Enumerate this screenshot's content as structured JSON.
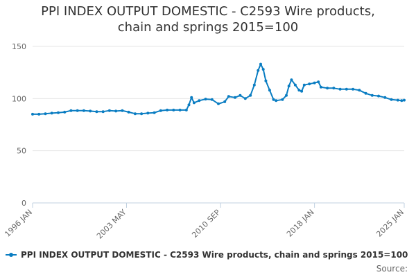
{
  "chart_data": {
    "type": "line",
    "title_line1": "PPI INDEX OUTPUT DOMESTIC - C2593 Wire products,",
    "title_line2": "chain and springs 2015=100",
    "xlabel": "",
    "ylabel": "",
    "ylim": [
      0,
      150
    ],
    "y_ticks": [
      0,
      50,
      100,
      150
    ],
    "y_tick_labels": [
      "0",
      "50",
      "100",
      "150"
    ],
    "x_range": [
      1996.0,
      2025.0
    ],
    "x_ticks": [
      {
        "value": 1996.0,
        "label": "1996 JAN"
      },
      {
        "value": 2003.33,
        "label": "2003 MAY"
      },
      {
        "value": 2010.67,
        "label": "2010 SEP"
      },
      {
        "value": 2018.0,
        "label": "2018 JAN"
      },
      {
        "value": 2025.0,
        "label": "2025 JAN"
      }
    ],
    "grid": true,
    "legend_position": "bottom-left",
    "series": [
      {
        "name": "PPI INDEX OUTPUT DOMESTIC - C2593 Wire products, chain and springs 2015=100",
        "color": "#0a7dc2",
        "points": [
          [
            1996.0,
            85
          ],
          [
            1996.5,
            85
          ],
          [
            1997.0,
            85.5
          ],
          [
            1997.5,
            86
          ],
          [
            1998.0,
            86.5
          ],
          [
            1998.5,
            87
          ],
          [
            1999.0,
            88.5
          ],
          [
            1999.5,
            88.5
          ],
          [
            2000.0,
            88.5
          ],
          [
            2000.5,
            88
          ],
          [
            2001.0,
            87.5
          ],
          [
            2001.5,
            87.5
          ],
          [
            2002.0,
            88.5
          ],
          [
            2002.5,
            88
          ],
          [
            2003.0,
            88.5
          ],
          [
            2003.5,
            87
          ],
          [
            2004.0,
            85.5
          ],
          [
            2004.5,
            85.5
          ],
          [
            2005.0,
            86
          ],
          [
            2005.5,
            86.5
          ],
          [
            2006.0,
            88.5
          ],
          [
            2006.5,
            89
          ],
          [
            2007.0,
            89
          ],
          [
            2007.5,
            89
          ],
          [
            2008.0,
            89
          ],
          [
            2008.2,
            94
          ],
          [
            2008.4,
            101
          ],
          [
            2008.6,
            96
          ],
          [
            2009.0,
            98
          ],
          [
            2009.5,
            99.5
          ],
          [
            2010.0,
            99
          ],
          [
            2010.5,
            95
          ],
          [
            2011.0,
            97
          ],
          [
            2011.3,
            102
          ],
          [
            2011.8,
            101
          ],
          [
            2012.2,
            103
          ],
          [
            2012.6,
            100
          ],
          [
            2013.0,
            103
          ],
          [
            2013.3,
            113
          ],
          [
            2013.6,
            127
          ],
          [
            2013.8,
            133
          ],
          [
            2014.0,
            128
          ],
          [
            2014.2,
            117
          ],
          [
            2014.5,
            108
          ],
          [
            2014.8,
            99
          ],
          [
            2015.0,
            98
          ],
          [
            2015.5,
            99
          ],
          [
            2015.8,
            103
          ],
          [
            2016.0,
            112
          ],
          [
            2016.2,
            118
          ],
          [
            2016.5,
            113
          ],
          [
            2016.8,
            108
          ],
          [
            2017.0,
            107
          ],
          [
            2017.2,
            113
          ],
          [
            2017.6,
            114
          ],
          [
            2018.0,
            115
          ],
          [
            2018.3,
            116
          ],
          [
            2018.5,
            111
          ],
          [
            2019.0,
            110
          ],
          [
            2019.5,
            110
          ],
          [
            2020.0,
            109
          ],
          [
            2020.5,
            109
          ],
          [
            2021.0,
            109
          ],
          [
            2021.5,
            108
          ],
          [
            2022.0,
            105
          ],
          [
            2022.5,
            103
          ],
          [
            2023.0,
            102.5
          ],
          [
            2023.5,
            101
          ],
          [
            2024.0,
            99
          ],
          [
            2024.5,
            98.5
          ],
          [
            2024.8,
            98
          ],
          [
            2025.0,
            98.5
          ]
        ]
      }
    ]
  },
  "legend": {
    "label": "PPI INDEX OUTPUT DOMESTIC - C2593 Wire products, chain and springs 2015=100"
  },
  "source": {
    "label": "Source:"
  }
}
